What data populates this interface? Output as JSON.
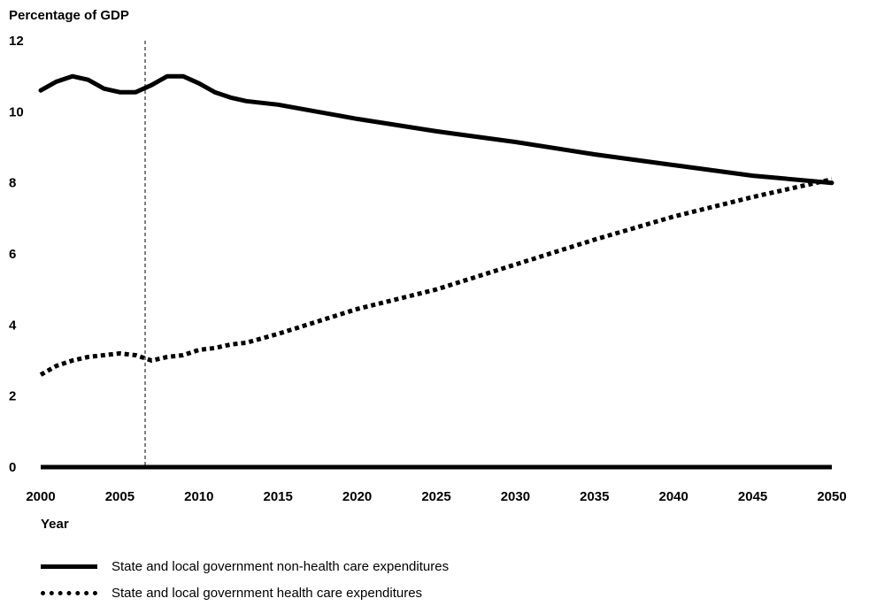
{
  "chart_data": {
    "type": "line",
    "title": "",
    "ylabel": "Percentage of GDP",
    "xlabel": "Year",
    "xlim": [
      2000,
      2050
    ],
    "ylim": [
      0,
      12
    ],
    "x_ticks": [
      "2000",
      "2005",
      "2010",
      "2015",
      "2020",
      "2025",
      "2030",
      "2035",
      "2040",
      "2045",
      "2050"
    ],
    "y_ticks": [
      "0",
      "2",
      "4",
      "6",
      "8",
      "10",
      "12"
    ],
    "reference_line_x": 2006.6,
    "grid": false,
    "legend_position": "bottom",
    "series": [
      {
        "name": "State and local government non-health care expenditures",
        "style": "solid",
        "x": [
          2000,
          2001,
          2002,
          2003,
          2004,
          2005,
          2006,
          2007,
          2008,
          2009,
          2010,
          2011,
          2012,
          2013,
          2015,
          2020,
          2025,
          2030,
          2035,
          2040,
          2045,
          2050
        ],
        "y": [
          10.6,
          10.85,
          11.0,
          10.9,
          10.65,
          10.55,
          10.55,
          10.75,
          11.0,
          11.0,
          10.8,
          10.55,
          10.4,
          10.3,
          10.2,
          9.8,
          9.45,
          9.15,
          8.8,
          8.5,
          8.2,
          8.0
        ]
      },
      {
        "name": "State and local government health care expenditures",
        "style": "dotted",
        "x": [
          2000,
          2001,
          2002,
          2003,
          2004,
          2005,
          2006,
          2007,
          2008,
          2009,
          2010,
          2011,
          2012,
          2013,
          2015,
          2020,
          2025,
          2030,
          2035,
          2040,
          2045,
          2050
        ],
        "y": [
          2.6,
          2.85,
          3.0,
          3.1,
          3.15,
          3.2,
          3.15,
          3.0,
          3.1,
          3.15,
          3.3,
          3.35,
          3.45,
          3.5,
          3.75,
          4.45,
          5.0,
          5.7,
          6.4,
          7.05,
          7.6,
          8.1
        ]
      }
    ]
  }
}
